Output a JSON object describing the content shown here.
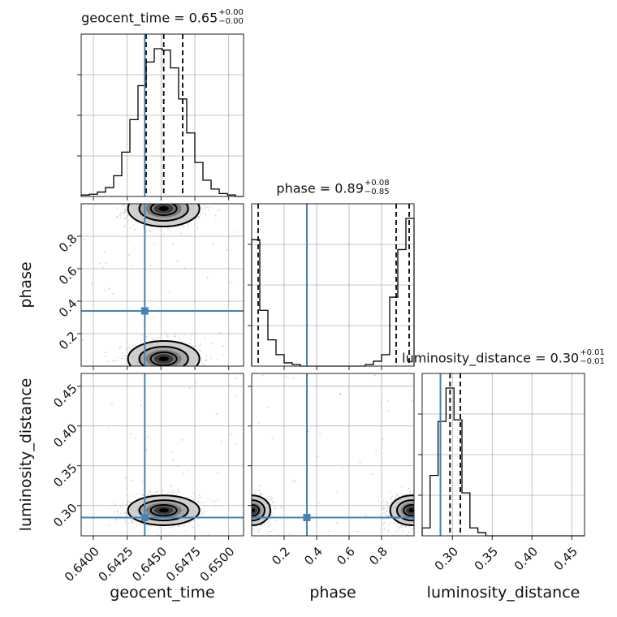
{
  "chart_data": {
    "type": "corner",
    "parameters": [
      "geocent_time",
      "phase",
      "luminosity_distance"
    ],
    "truths": {
      "geocent_time": 0.6438,
      "phase": 0.34,
      "luminosity_distance": 0.285
    },
    "ranges": {
      "geocent_time": [
        0.6391,
        0.6511
      ],
      "phase": [
        0.0,
        1.0
      ],
      "luminosity_distance": [
        0.262,
        0.466
      ]
    },
    "ticks": {
      "geocent_time": {
        "values": [
          0.64,
          0.6425,
          0.645,
          0.6475,
          0.65
        ],
        "labels": [
          "0.6400",
          "0.6425",
          "0.6450",
          "0.6475",
          "0.6500"
        ]
      },
      "phase": {
        "values": [
          0.2,
          0.4,
          0.6,
          0.8
        ],
        "labels": [
          "0.2",
          "0.4",
          "0.6",
          "0.8"
        ]
      },
      "luminosity_distance": {
        "values": [
          0.3,
          0.35,
          0.4,
          0.45
        ],
        "labels": [
          "0.30",
          "0.35",
          "0.40",
          "0.45"
        ]
      }
    },
    "titles": [
      {
        "param": "geocent_time",
        "text": "geocent_time = 0.65",
        "plus": "+0.00",
        "minus": "−0.00"
      },
      {
        "param": "phase",
        "text": "phase = 0.89",
        "plus": "+0.08",
        "minus": "−0.85"
      },
      {
        "param": "luminosity_distance",
        "text": "luminosity_distance = 0.30",
        "plus": "+0.01",
        "minus": "−0.01"
      }
    ],
    "axis_labels": {
      "geocent_time": "geocent_time",
      "phase": "phase",
      "luminosity_distance": "luminosity_distance"
    },
    "histograms": {
      "geocent_time": {
        "edges": [
          0.6391,
          0.6397,
          0.6403,
          0.6409,
          0.6415,
          0.6421,
          0.6427,
          0.6433,
          0.6439,
          0.6445,
          0.6451,
          0.6457,
          0.6463,
          0.6469,
          0.6475,
          0.6481,
          0.6487,
          0.6493,
          0.6499,
          0.6505,
          0.6511
        ],
        "counts": [
          0.01,
          0.015,
          0.03,
          0.06,
          0.14,
          0.3,
          0.52,
          0.75,
          0.91,
          1.0,
          0.99,
          0.87,
          0.66,
          0.43,
          0.23,
          0.11,
          0.05,
          0.02,
          0.01,
          0.0
        ],
        "quantiles": [
          0.6439,
          0.6452,
          0.6466
        ]
      },
      "phase": {
        "edges": [
          0.0,
          0.05,
          0.1,
          0.15,
          0.2,
          0.25,
          0.3,
          0.35,
          0.4,
          0.45,
          0.5,
          0.55,
          0.6,
          0.65,
          0.7,
          0.75,
          0.8,
          0.85,
          0.9,
          0.95,
          1.0
        ],
        "counts": [
          0.77,
          0.34,
          0.16,
          0.07,
          0.02,
          0.01,
          0.0,
          0.0,
          0.0,
          0.0,
          0.0,
          0.0,
          0.0,
          0.0,
          0.01,
          0.03,
          0.07,
          0.42,
          0.71,
          0.9
        ],
        "quantiles": [
          0.04,
          0.89,
          0.97
        ]
      },
      "luminosity_distance": {
        "edges": [
          0.262,
          0.272,
          0.282,
          0.292,
          0.302,
          0.312,
          0.322,
          0.332,
          0.342,
          0.352,
          0.362,
          0.372,
          0.382,
          0.392,
          0.402,
          0.412,
          0.422,
          0.432,
          0.442,
          0.452,
          0.466
        ],
        "counts": [
          0.05,
          0.38,
          0.72,
          0.93,
          0.73,
          0.27,
          0.05,
          0.02,
          0.0,
          0.0,
          0.0,
          0.0,
          0.0,
          0.0,
          0.0,
          0.0,
          0.0,
          0.0,
          0.0,
          0.0
        ],
        "quantiles": [
          0.285,
          0.297,
          0.31
        ]
      }
    },
    "grid": true,
    "colors": {
      "truth": "#4682b4",
      "hist": "#000000",
      "grid": "#b0b0b0",
      "samples": "#9a9a9a"
    }
  }
}
